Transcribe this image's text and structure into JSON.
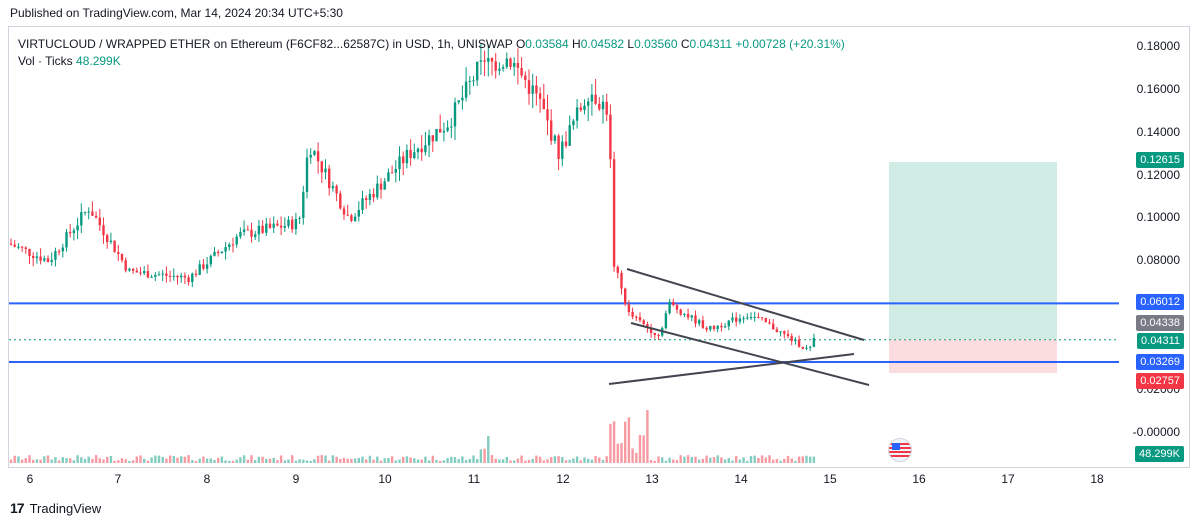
{
  "header": {
    "published": "Published on TradingView.com, Mar 14, 2024 20:34 UTC+5:30"
  },
  "legend": {
    "symbol": "VIRTUCLOUD / WRAPPED ETHER on Ethereum (F6CF82...62587C) in USD, 1h, UNISWAP",
    "o_label": "O",
    "o_value": "0.03584",
    "h_label": "H",
    "h_value": "0.04582",
    "l_label": "L",
    "l_value": "0.03560",
    "c_label": "C",
    "c_value": "0.04311",
    "change": "+0.00728 (+20.31%)",
    "vol_label": "Vol · Ticks",
    "vol_value": "48.299K"
  },
  "y_axis": {
    "ticks": [
      "0.18000",
      "0.16000",
      "0.14000",
      "0.12000",
      "0.10000",
      "0.08000",
      "0.02000",
      "-0.00000"
    ]
  },
  "x_axis": {
    "ticks": [
      "6",
      "7",
      "8",
      "9",
      "10",
      "11",
      "12",
      "13",
      "14",
      "15",
      "16",
      "17",
      "18"
    ]
  },
  "price_tags": [
    {
      "value": "0.12615",
      "color": "#089981"
    },
    {
      "value": "0.06012",
      "color": "#2962ff"
    },
    {
      "value": "0.04338",
      "color": "#787b86"
    },
    {
      "value": "0.04311",
      "color": "#089981"
    },
    {
      "value": "0.03269",
      "color": "#2962ff"
    },
    {
      "value": "0.02757",
      "color": "#f23645"
    },
    {
      "value": "48.299K",
      "color": "#089981"
    }
  ],
  "footer": {
    "brand": "TradingView",
    "logo": "17"
  },
  "colors": {
    "up": "#089981",
    "down": "#f23645",
    "hline": "#2962ff",
    "target_zone": "#d1ece5",
    "stop_zone": "#fbdde0",
    "trendline": "#434651"
  }
}
